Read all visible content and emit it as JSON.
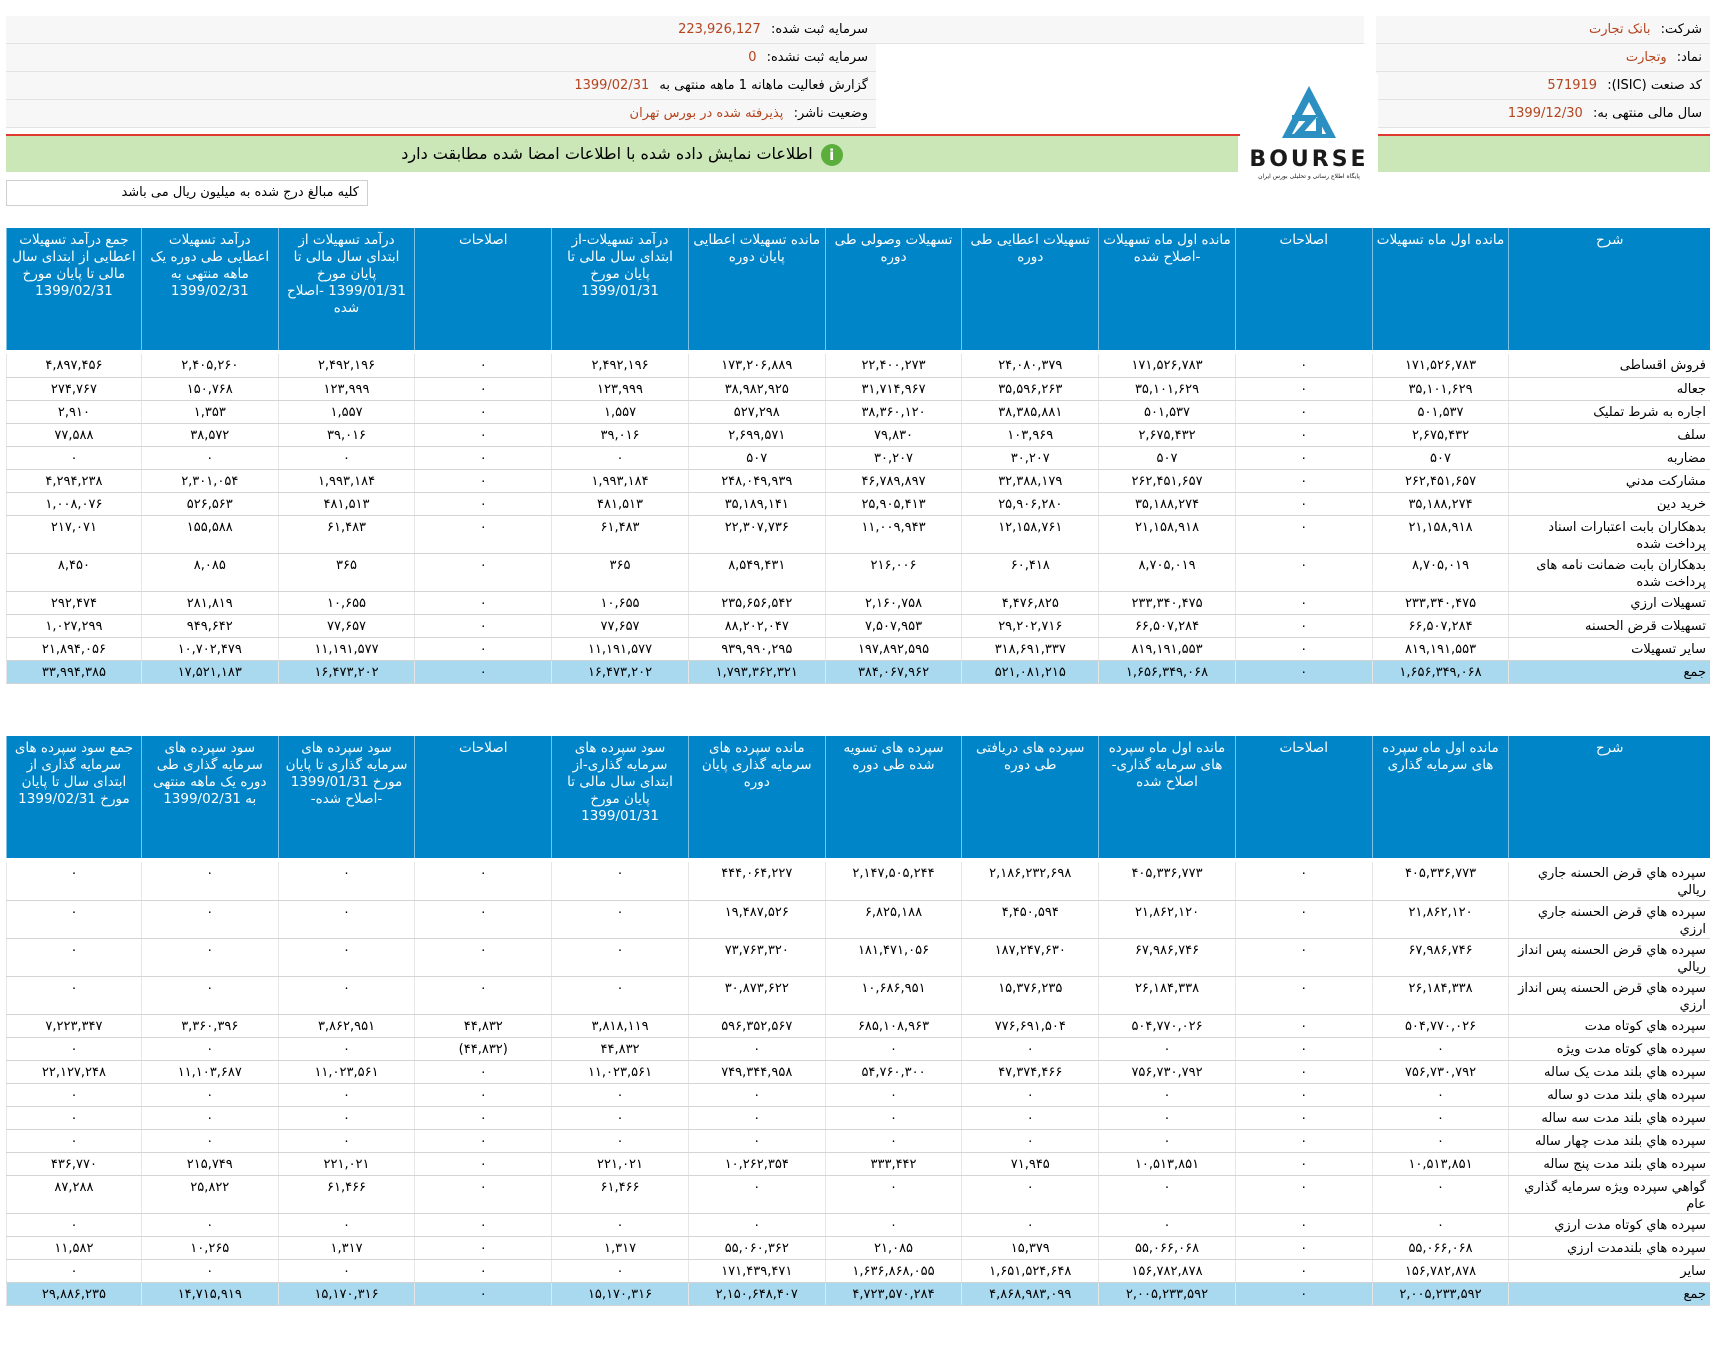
{
  "header": {
    "company_label": "شرکت:",
    "company_value": "بانک تجارت",
    "symbol_label": "نماد:",
    "symbol_value": "وتجارت",
    "isic_label": "کد صنعت (ISIC):",
    "isic_value": "571919",
    "fiscal_label": "سال مالی منتهی به:",
    "fiscal_value": "1399/12/30",
    "capital_reg_label": "سرمایه ثبت شده:",
    "capital_reg_value": "223,926,127",
    "capital_unreg_label": "سرمایه ثبت نشده:",
    "capital_unreg_value": "0",
    "report_label": "گزارش فعالیت ماهانه 1 ماهه منتهی به",
    "report_value": "1399/02/31",
    "status_label": "وضعیت ناشر:",
    "status_value": "پذیرفته شده در بورس تهران"
  },
  "logo": {
    "text": "BOURSE",
    "subtitle": "پایگاه اطلاع رسانی و تحلیلی بورس ایران"
  },
  "banner": {
    "text": "اطلاعات نمایش داده شده با اطلاعات امضا شده مطابقت دارد",
    "icon": "info-icon"
  },
  "note": "کلیه مبالغ درج شده به میلیون ریال می باشد",
  "colors": {
    "header_blue": "#0085c9",
    "total_row": "#a9d9ee",
    "banner_green": "#cbe7b8",
    "value_orange": "#b4441e"
  },
  "facilities": {
    "columns": [
      "شرح",
      "مانده اول ماه تسهیلات",
      "اصلاحات",
      "مانده اول ماه تسهیلات -اصلاح شده",
      "تسهیلات اعطایی طی دوره",
      "تسهیلات وصولی طی دوره",
      "مانده تسهیلات اعطایی پایان دوره",
      "درآمد تسهیلات-از ابتدای سال مالی تا پایان مورخ 1399/01/31",
      "اصلاحات",
      "درآمد تسهیلات از ابتدای سال مالی تا پایان مورخ 1399/01/31 -اصلاح شده",
      "درآمد تسهیلات اعطایی طی دوره یک ماهه منتهی به 1399/02/31",
      "جمع درآمد تسهیلات اعطایی از ابتدای سال مالی تا پایان مورخ 1399/02/31"
    ],
    "rows": [
      [
        "فروش اقساطی",
        "۱۷۱,۵۲۶,۷۸۳",
        "۰",
        "۱۷۱,۵۲۶,۷۸۳",
        "۲۴,۰۸۰,۳۷۹",
        "۲۲,۴۰۰,۲۷۳",
        "۱۷۳,۲۰۶,۸۸۹",
        "۲,۴۹۲,۱۹۶",
        "۰",
        "۲,۴۹۲,۱۹۶",
        "۲,۴۰۵,۲۶۰",
        "۴,۸۹۷,۴۵۶"
      ],
      [
        "جعاله",
        "۳۵,۱۰۱,۶۲۹",
        "۰",
        "۳۵,۱۰۱,۶۲۹",
        "۳۵,۵۹۶,۲۶۳",
        "۳۱,۷۱۴,۹۶۷",
        "۳۸,۹۸۲,۹۲۵",
        "۱۲۳,۹۹۹",
        "۰",
        "۱۲۳,۹۹۹",
        "۱۵۰,۷۶۸",
        "۲۷۴,۷۶۷"
      ],
      [
        "اجاره به شرط تملیک",
        "۵۰۱,۵۳۷",
        "۰",
        "۵۰۱,۵۳۷",
        "۳۸,۳۸۵,۸۸۱",
        "۳۸,۳۶۰,۱۲۰",
        "۵۲۷,۲۹۸",
        "۱,۵۵۷",
        "۰",
        "۱,۵۵۷",
        "۱,۳۵۳",
        "۲,۹۱۰"
      ],
      [
        "سلف",
        "۲,۶۷۵,۴۳۲",
        "۰",
        "۲,۶۷۵,۴۳۲",
        "۱۰۳,۹۶۹",
        "۷۹,۸۳۰",
        "۲,۶۹۹,۵۷۱",
        "۳۹,۰۱۶",
        "۰",
        "۳۹,۰۱۶",
        "۳۸,۵۷۲",
        "۷۷,۵۸۸"
      ],
      [
        "مضاربه",
        "۵۰۷",
        "۰",
        "۵۰۷",
        "۳۰,۲۰۷",
        "۳۰,۲۰۷",
        "۵۰۷",
        "۰",
        "۰",
        "۰",
        "۰",
        "۰"
      ],
      [
        "مشارکت مدني",
        "۲۶۲,۴۵۱,۶۵۷",
        "۰",
        "۲۶۲,۴۵۱,۶۵۷",
        "۳۲,۳۸۸,۱۷۹",
        "۴۶,۷۸۹,۸۹۷",
        "۲۴۸,۰۴۹,۹۳۹",
        "۱,۹۹۳,۱۸۴",
        "۰",
        "۱,۹۹۳,۱۸۴",
        "۲,۳۰۱,۰۵۴",
        "۴,۲۹۴,۲۳۸"
      ],
      [
        "خرید دین",
        "۳۵,۱۸۸,۲۷۴",
        "۰",
        "۳۵,۱۸۸,۲۷۴",
        "۲۵,۹۰۶,۲۸۰",
        "۲۵,۹۰۵,۴۱۳",
        "۳۵,۱۸۹,۱۴۱",
        "۴۸۱,۵۱۳",
        "۰",
        "۴۸۱,۵۱۳",
        "۵۲۶,۵۶۳",
        "۱,۰۰۸,۰۷۶"
      ],
      [
        "بدهکاران بابت اعتبارات اسناد پرداخت شده",
        "۲۱,۱۵۸,۹۱۸",
        "۰",
        "۲۱,۱۵۸,۹۱۸",
        "۱۲,۱۵۸,۷۶۱",
        "۱۱,۰۰۹,۹۴۳",
        "۲۲,۳۰۷,۷۳۶",
        "۶۱,۴۸۳",
        "۰",
        "۶۱,۴۸۳",
        "۱۵۵,۵۸۸",
        "۲۱۷,۰۷۱"
      ],
      [
        "بدهکاران بابت ضمانت نامه های پرداخت شده",
        "۸,۷۰۵,۰۱۹",
        "۰",
        "۸,۷۰۵,۰۱۹",
        "۶۰,۴۱۸",
        "۲۱۶,۰۰۶",
        "۸,۵۴۹,۴۳۱",
        "۳۶۵",
        "۰",
        "۳۶۵",
        "۸,۰۸۵",
        "۸,۴۵۰"
      ],
      [
        "تسهیلات ارزي",
        "۲۳۳,۳۴۰,۴۷۵",
        "۰",
        "۲۳۳,۳۴۰,۴۷۵",
        "۴,۴۷۶,۸۲۵",
        "۲,۱۶۰,۷۵۸",
        "۲۳۵,۶۵۶,۵۴۲",
        "۱۰,۶۵۵",
        "۰",
        "۱۰,۶۵۵",
        "۲۸۱,۸۱۹",
        "۲۹۲,۴۷۴"
      ],
      [
        "تسهیلات قرض الحسنه",
        "۶۶,۵۰۷,۲۸۴",
        "۰",
        "۶۶,۵۰۷,۲۸۴",
        "۲۹,۲۰۲,۷۱۶",
        "۷,۵۰۷,۹۵۳",
        "۸۸,۲۰۲,۰۴۷",
        "۷۷,۶۵۷",
        "۰",
        "۷۷,۶۵۷",
        "۹۴۹,۶۴۲",
        "۱,۰۲۷,۲۹۹"
      ],
      [
        "سایر تسهیلات",
        "۸۱۹,۱۹۱,۵۵۳",
        "۰",
        "۸۱۹,۱۹۱,۵۵۳",
        "۳۱۸,۶۹۱,۳۳۷",
        "۱۹۷,۸۹۲,۵۹۵",
        "۹۳۹,۹۹۰,۲۹۵",
        "۱۱,۱۹۱,۵۷۷",
        "۰",
        "۱۱,۱۹۱,۵۷۷",
        "۱۰,۷۰۲,۴۷۹",
        "۲۱,۸۹۴,۰۵۶"
      ]
    ],
    "total": [
      "جمع",
      "۱,۶۵۶,۳۴۹,۰۶۸",
      "۰",
      "۱,۶۵۶,۳۴۹,۰۶۸",
      "۵۲۱,۰۸۱,۲۱۵",
      "۳۸۴,۰۶۷,۹۶۲",
      "۱,۷۹۳,۳۶۲,۳۲۱",
      "۱۶,۴۷۳,۲۰۲",
      "۰",
      "۱۶,۴۷۳,۲۰۲",
      "۱۷,۵۲۱,۱۸۳",
      "۳۳,۹۹۴,۳۸۵"
    ]
  },
  "deposits": {
    "columns": [
      "شرح",
      "مانده اول ماه سپرده های سرمایه گذاری",
      "اصلاحات",
      "مانده اول ماه سپرده های سرمایه گذاری- اصلاح شده",
      "سپرده های دریافتی طی دوره",
      "سپرده های تسویه شده طی دوره",
      "مانده سپرده های سرمایه گذاری پایان دوره",
      "سود سپرده های سرمایه گذاری-از ابتدای سال مالی تا پایان مورخ 1399/01/31",
      "اصلاحات",
      "سود سپرده های سرمایه گذاری تا پایان مورخ 1399/01/31 -اصلاح شده-",
      "سود سپرده های سرمایه گذاری طی دوره یک ماهه منتهی به 1399/02/31",
      "جمع سود سپرده های سرمایه گذاری از ابتدای سال تا پایان مورخ 1399/02/31"
    ],
    "rows": [
      [
        "سپرده هاي قرض الحسنه جاري ريالي",
        "۴۰۵,۳۳۶,۷۷۳",
        "۰",
        "۴۰۵,۳۳۶,۷۷۳",
        "۲,۱۸۶,۲۳۲,۶۹۸",
        "۲,۱۴۷,۵۰۵,۲۴۴",
        "۴۴۴,۰۶۴,۲۲۷",
        "۰",
        "۰",
        "۰",
        "۰",
        "۰"
      ],
      [
        "سپرده هاي قرض الحسنه جاري ارزي",
        "۲۱,۸۶۲,۱۲۰",
        "۰",
        "۲۱,۸۶۲,۱۲۰",
        "۴,۴۵۰,۵۹۴",
        "۶,۸۲۵,۱۸۸",
        "۱۹,۴۸۷,۵۲۶",
        "۰",
        "۰",
        "۰",
        "۰",
        "۰"
      ],
      [
        "سپرده هاي قرض الحسنه پس انداز ريالي",
        "۶۷,۹۸۶,۷۴۶",
        "۰",
        "۶۷,۹۸۶,۷۴۶",
        "۱۸۷,۲۴۷,۶۳۰",
        "۱۸۱,۴۷۱,۰۵۶",
        "۷۳,۷۶۳,۳۲۰",
        "۰",
        "۰",
        "۰",
        "۰",
        "۰"
      ],
      [
        "سپرده هاي قرض الحسنه پس انداز ارزي",
        "۲۶,۱۸۴,۳۳۸",
        "۰",
        "۲۶,۱۸۴,۳۳۸",
        "۱۵,۳۷۶,۲۳۵",
        "۱۰,۶۸۶,۹۵۱",
        "۳۰,۸۷۳,۶۲۲",
        "۰",
        "۰",
        "۰",
        "۰",
        "۰"
      ],
      [
        "سپرده هاي کوتاه مدت",
        "۵۰۴,۷۷۰,۰۲۶",
        "۰",
        "۵۰۴,۷۷۰,۰۲۶",
        "۷۷۶,۶۹۱,۵۰۴",
        "۶۸۵,۱۰۸,۹۶۳",
        "۵۹۶,۳۵۲,۵۶۷",
        "۳,۸۱۸,۱۱۹",
        "۴۴,۸۳۲",
        "۳,۸۶۲,۹۵۱",
        "۳,۳۶۰,۳۹۶",
        "۷,۲۲۳,۳۴۷"
      ],
      [
        "سپرده هاي کوتاه مدت ويژه",
        "۰",
        "۰",
        "۰",
        "۰",
        "۰",
        "۰",
        "۴۴,۸۳۲",
        "(۴۴,۸۳۲)",
        "۰",
        "۰",
        "۰"
      ],
      [
        "سپرده هاي بلند مدت يک ساله",
        "۷۵۶,۷۳۰,۷۹۲",
        "۰",
        "۷۵۶,۷۳۰,۷۹۲",
        "۴۷,۳۷۴,۴۶۶",
        "۵۴,۷۶۰,۳۰۰",
        "۷۴۹,۳۴۴,۹۵۸",
        "۱۱,۰۲۳,۵۶۱",
        "۰",
        "۱۱,۰۲۳,۵۶۱",
        "۱۱,۱۰۳,۶۸۷",
        "۲۲,۱۲۷,۲۴۸"
      ],
      [
        "سپرده هاي بلند مدت دو ساله",
        "۰",
        "۰",
        "۰",
        "۰",
        "۰",
        "۰",
        "۰",
        "۰",
        "۰",
        "۰",
        "۰"
      ],
      [
        "سپرده هاي بلند مدت سه ساله",
        "۰",
        "۰",
        "۰",
        "۰",
        "۰",
        "۰",
        "۰",
        "۰",
        "۰",
        "۰",
        "۰"
      ],
      [
        "سپرده هاي بلند مدت چهار ساله",
        "۰",
        "۰",
        "۰",
        "۰",
        "۰",
        "۰",
        "۰",
        "۰",
        "۰",
        "۰",
        "۰"
      ],
      [
        "سپرده هاي بلند مدت پنج ساله",
        "۱۰,۵۱۳,۸۵۱",
        "۰",
        "۱۰,۵۱۳,۸۵۱",
        "۷۱,۹۴۵",
        "۳۳۳,۴۴۲",
        "۱۰,۲۶۲,۳۵۴",
        "۲۲۱,۰۲۱",
        "۰",
        "۲۲۱,۰۲۱",
        "۲۱۵,۷۴۹",
        "۴۳۶,۷۷۰"
      ],
      [
        "گواهي سپرده ويژه سرمايه گذاري عام",
        "۰",
        "۰",
        "۰",
        "۰",
        "۰",
        "۰",
        "۶۱,۴۶۶",
        "۰",
        "۶۱,۴۶۶",
        "۲۵,۸۲۲",
        "۸۷,۲۸۸"
      ],
      [
        "سپرده هاي کوتاه مدت ارزي",
        "۰",
        "۰",
        "۰",
        "۰",
        "۰",
        "۰",
        "۰",
        "۰",
        "۰",
        "۰",
        "۰"
      ],
      [
        "سپرده هاي بلندمدت ارزي",
        "۵۵,۰۶۶,۰۶۸",
        "۰",
        "۵۵,۰۶۶,۰۶۸",
        "۱۵,۳۷۹",
        "۲۱,۰۸۵",
        "۵۵,۰۶۰,۳۶۲",
        "۱,۳۱۷",
        "۰",
        "۱,۳۱۷",
        "۱۰,۲۶۵",
        "۱۱,۵۸۲"
      ],
      [
        "ساير",
        "۱۵۶,۷۸۲,۸۷۸",
        "۰",
        "۱۵۶,۷۸۲,۸۷۸",
        "۱,۶۵۱,۵۲۴,۶۴۸",
        "۱,۶۳۶,۸۶۸,۰۵۵",
        "۱۷۱,۴۳۹,۴۷۱",
        "۰",
        "۰",
        "۰",
        "۰",
        "۰"
      ]
    ],
    "total": [
      "جمع",
      "۲,۰۰۵,۲۳۳,۵۹۲",
      "۰",
      "۲,۰۰۵,۲۳۳,۵۹۲",
      "۴,۸۶۸,۹۸۳,۰۹۹",
      "۴,۷۲۳,۵۷۰,۲۸۴",
      "۲,۱۵۰,۶۴۸,۴۰۷",
      "۱۵,۱۷۰,۳۱۶",
      "۰",
      "۱۵,۱۷۰,۳۱۶",
      "۱۴,۷۱۵,۹۱۹",
      "۲۹,۸۸۶,۲۳۵"
    ]
  }
}
